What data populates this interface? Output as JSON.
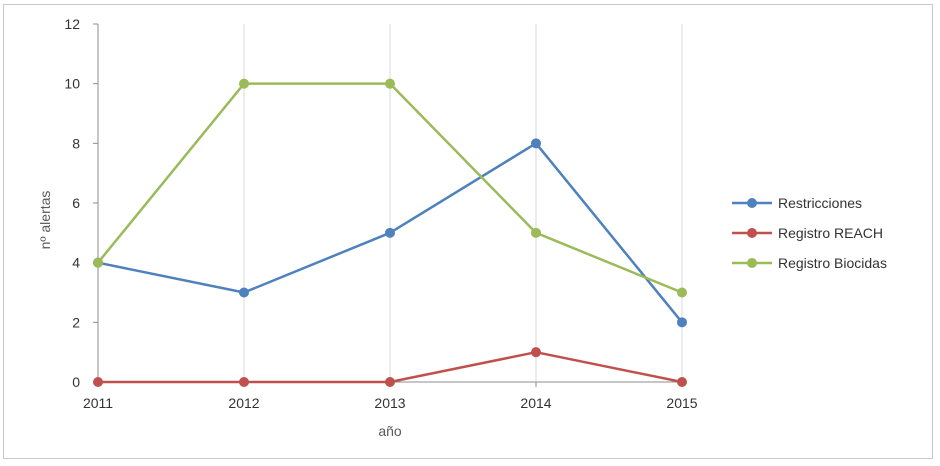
{
  "chart_data": {
    "type": "line",
    "x": [
      "2011",
      "2012",
      "2013",
      "2014",
      "2015"
    ],
    "series": [
      {
        "name": "Restricciones",
        "color": "#4f81bd",
        "values": [
          4,
          3,
          5,
          8,
          2
        ]
      },
      {
        "name": "Registro REACH",
        "color": "#c0504d",
        "values": [
          0,
          0,
          0,
          1,
          0
        ]
      },
      {
        "name": "Registro Biocidas",
        "color": "#9bbb59",
        "values": [
          4,
          10,
          10,
          5,
          3
        ]
      }
    ],
    "xlabel": "año",
    "ylabel": "nº alertas",
    "ylim": [
      0,
      12
    ],
    "yticks": [
      "0",
      "2",
      "4",
      "6",
      "8",
      "10",
      "12"
    ],
    "grid": "vertical",
    "legend": "right"
  }
}
